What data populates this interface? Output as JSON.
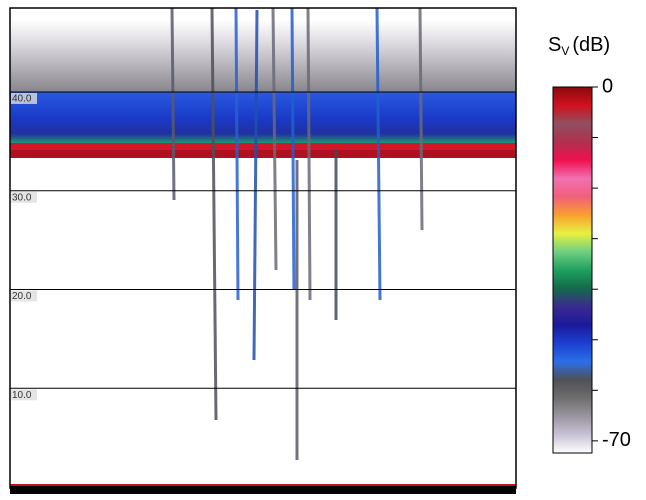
{
  "chart_data": {
    "type": "echogram",
    "ylim": [
      0,
      48.5
    ],
    "yticks": [
      {
        "value": 10,
        "label": "10.0"
      },
      {
        "value": 20,
        "label": "20.0"
      },
      {
        "value": 30,
        "label": "30.0"
      },
      {
        "value": 40,
        "label": "40.0"
      }
    ],
    "grid": true,
    "colorbar": {
      "title": "S",
      "title_sub": "V",
      "unit": "(dB)",
      "clim": [
        -72.4,
        0
      ],
      "ticks": [
        0,
        -70
      ],
      "minor_ticks": [
        -10,
        -20,
        -30,
        -40,
        -50,
        -60
      ],
      "colors": [
        "#ffffff",
        "#c9c2d6",
        "#9a96a0",
        "#6e6e6e",
        "#505058",
        "#2b6fe8",
        "#1c3fd0",
        "#1a1a9a",
        "#3a2a90",
        "#156a4a",
        "#1fa060",
        "#6fd080",
        "#e8f040",
        "#f8a030",
        "#f0607a",
        "#f070b0",
        "#f01050",
        "#b03050",
        "#905060",
        "#d01020",
        "#8a0a0a"
      ]
    }
  }
}
